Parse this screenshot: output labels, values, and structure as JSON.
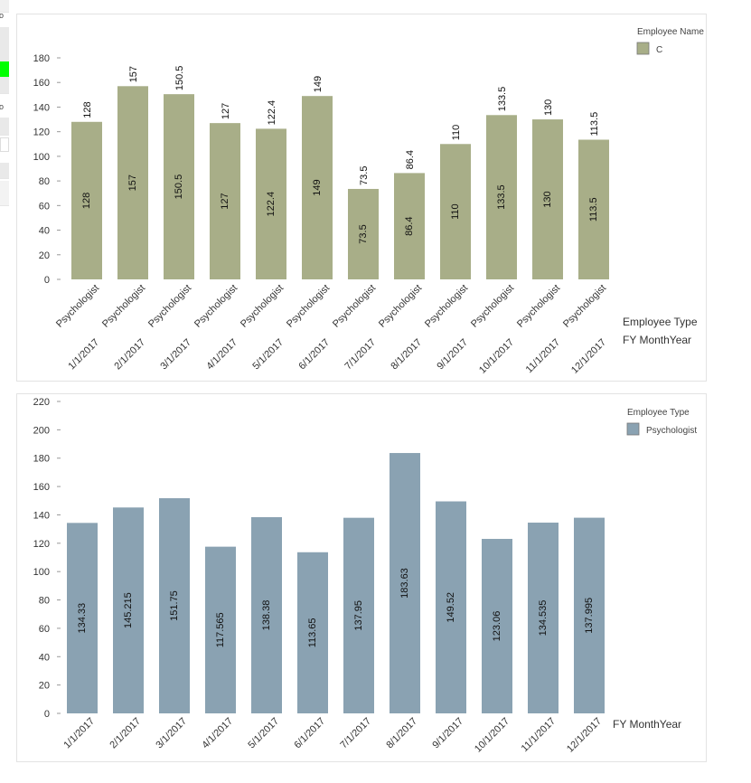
{
  "left_strip": {
    "glyph_top": "o",
    "glyph_mid": "o",
    "accent_color": "#00ff00"
  },
  "chart_data": [
    {
      "type": "bar",
      "categories": [
        "1/1/2017",
        "2/1/2017",
        "3/1/2017",
        "4/1/2017",
        "5/1/2017",
        "6/1/2017",
        "7/1/2017",
        "8/1/2017",
        "9/1/2017",
        "10/1/2017",
        "11/1/2017",
        "12/1/2017"
      ],
      "sub_categories": [
        "Psychologist",
        "Psychologist",
        "Psychologist",
        "Psychologist",
        "Psychologist",
        "Psychologist",
        "Psychologist",
        "Psychologist",
        "Psychologist",
        "Psychologist",
        "Psychologist",
        "Psychologist"
      ],
      "series": [
        {
          "name": "C",
          "values": [
            128,
            157,
            150.5,
            127,
            122.4,
            149,
            73.5,
            86.4,
            110,
            133.5,
            130,
            113.5
          ],
          "color": "#a8ae88"
        }
      ],
      "data_labels_inside": [
        "128",
        "157",
        "150.5",
        "127",
        "122.4",
        "149",
        "73.5",
        "86.4",
        "110",
        "133.5",
        "130",
        "113.5"
      ],
      "data_labels_top": [
        "128",
        "157",
        "150.5",
        "127",
        "122.4",
        "149",
        "73.5",
        "86.4",
        "110",
        "133.5",
        "130",
        "113.5"
      ],
      "yticks": [
        0,
        20,
        40,
        60,
        80,
        100,
        120,
        140,
        160,
        180
      ],
      "ylim": [
        0,
        180
      ],
      "legend_title": "Employee Name",
      "legend_position": "top-right",
      "axis_titles": [
        "Employee Type",
        "FY MonthYear"
      ],
      "grid": false
    },
    {
      "type": "bar",
      "categories": [
        "1/1/2017",
        "2/1/2017",
        "3/1/2017",
        "4/1/2017",
        "5/1/2017",
        "6/1/2017",
        "7/1/2017",
        "8/1/2017",
        "9/1/2017",
        "10/1/2017",
        "11/1/2017",
        "12/1/2017"
      ],
      "series": [
        {
          "name": "Psychologist",
          "values": [
            134.33,
            145.215,
            151.75,
            117.565,
            138.38,
            113.65,
            137.95,
            183.63,
            149.52,
            123.06,
            134.535,
            137.995
          ],
          "color": "#8aa2b2"
        }
      ],
      "data_labels_inside": [
        "134.33",
        "145.215",
        "151.75",
        "117.565",
        "138.38",
        "113.65",
        "137.95",
        "183.63",
        "149.52",
        "123.06",
        "134.535",
        "137.995"
      ],
      "yticks": [
        0,
        20,
        40,
        60,
        80,
        100,
        120,
        140,
        160,
        180,
        200,
        220
      ],
      "ylim": [
        0,
        220
      ],
      "legend_title": "Employee Type",
      "legend_position": "top-right",
      "axis_titles": [
        "FY MonthYear"
      ],
      "grid": false
    }
  ]
}
